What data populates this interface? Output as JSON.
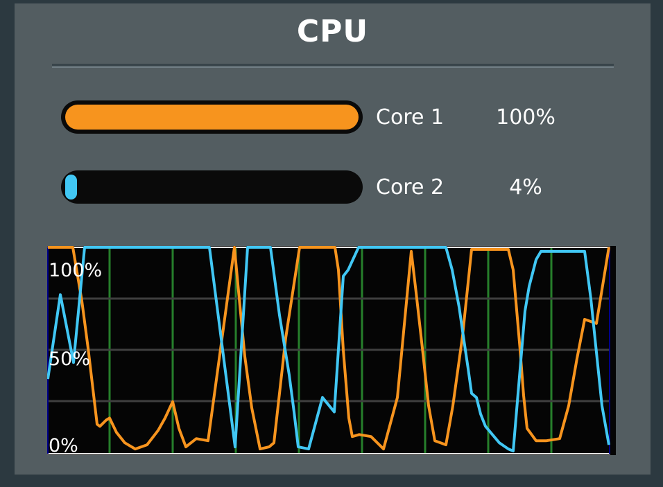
{
  "widget": {
    "title": "CPU"
  },
  "cores": [
    {
      "label": "Core 1",
      "value": "100%",
      "percent": 100,
      "fill_color": "#f7941e"
    },
    {
      "label": "Core 2",
      "value": "4%",
      "percent": 4,
      "fill_color": "#41c7f4"
    }
  ],
  "colors": {
    "background": "#2c3940",
    "panel": "#535d61",
    "bar_background": "#0a0a0a",
    "chart_background": "#050505",
    "grid_vertical_green": "#267f2b",
    "grid_horizontal_gray": "#3f3f3f",
    "chart_border_light": "#e9e9e9",
    "chart_border_navy": "#00008b",
    "text": "#ffffff",
    "core1_orange": "#f7941e",
    "core2_cyan": "#41c7f4"
  },
  "chart_data": {
    "type": "line",
    "ylim": [
      0,
      100
    ],
    "x_range_svg": [
      0,
      810
    ],
    "yticks": [
      {
        "label": "100%",
        "value": 100
      },
      {
        "label": "50%",
        "value": 50
      },
      {
        "label": "0%",
        "value": 0
      }
    ],
    "grid": {
      "horizontal_percent": [
        25,
        50,
        75
      ],
      "vertical_x_svg": [
        90,
        181,
        272,
        363,
        454,
        545,
        636,
        727
      ]
    },
    "legend_position": "none",
    "series": [
      {
        "name": "Core 1",
        "color": "#f7941e",
        "points": [
          [
            1,
            100
          ],
          [
            37,
            100
          ],
          [
            50,
            74
          ],
          [
            59,
            51
          ],
          [
            72,
            14
          ],
          [
            76,
            13
          ],
          [
            85,
            16
          ],
          [
            90,
            17
          ],
          [
            100,
            10
          ],
          [
            112,
            5
          ],
          [
            127,
            2
          ],
          [
            144,
            4
          ],
          [
            160,
            11
          ],
          [
            170,
            17
          ],
          [
            181,
            25
          ],
          [
            190,
            12
          ],
          [
            200,
            3
          ],
          [
            215,
            7
          ],
          [
            232,
            6
          ],
          [
            270,
            100
          ],
          [
            277,
            75
          ],
          [
            285,
            47
          ],
          [
            295,
            22
          ],
          [
            307,
            2
          ],
          [
            320,
            3
          ],
          [
            327,
            5
          ],
          [
            344,
            56
          ],
          [
            364,
            100
          ],
          [
            415,
            100
          ],
          [
            420,
            89
          ],
          [
            427,
            50
          ],
          [
            435,
            17
          ],
          [
            440,
            8
          ],
          [
            450,
            9
          ],
          [
            467,
            8
          ],
          [
            485,
            2
          ],
          [
            505,
            27
          ],
          [
            525,
            98
          ],
          [
            532,
            78
          ],
          [
            542,
            48
          ],
          [
            550,
            23
          ],
          [
            559,
            6
          ],
          [
            575,
            4
          ],
          [
            585,
            23
          ],
          [
            599,
            57
          ],
          [
            612,
            99
          ],
          [
            665,
            99
          ],
          [
            672,
            89
          ],
          [
            682,
            50
          ],
          [
            687,
            28
          ],
          [
            692,
            12
          ],
          [
            705,
            6
          ],
          [
            720,
            6
          ],
          [
            739,
            7
          ],
          [
            752,
            23
          ],
          [
            764,
            46
          ],
          [
            775,
            65
          ],
          [
            792,
            63
          ],
          [
            810,
            100
          ]
        ]
      },
      {
        "name": "Core 2",
        "color": "#41c7f4",
        "points": [
          [
            1,
            36
          ],
          [
            19,
            77
          ],
          [
            38,
            44
          ],
          [
            54,
            100
          ],
          [
            234,
            100
          ],
          [
            271,
            3
          ],
          [
            289,
            100
          ],
          [
            322,
            100
          ],
          [
            335,
            67
          ],
          [
            349,
            38
          ],
          [
            356,
            20
          ],
          [
            362,
            3
          ],
          [
            377,
            2
          ],
          [
            397,
            27
          ],
          [
            414,
            20
          ],
          [
            427,
            86
          ],
          [
            434,
            89
          ],
          [
            449,
            100
          ],
          [
            575,
            100
          ],
          [
            584,
            89
          ],
          [
            594,
            71
          ],
          [
            600,
            57
          ],
          [
            607,
            41
          ],
          [
            612,
            29
          ],
          [
            619,
            27
          ],
          [
            625,
            19
          ],
          [
            632,
            13
          ],
          [
            642,
            9
          ],
          [
            652,
            5
          ],
          [
            665,
            2
          ],
          [
            672,
            1
          ],
          [
            682,
            41
          ],
          [
            689,
            69
          ],
          [
            695,
            81
          ],
          [
            705,
            94
          ],
          [
            712,
            98
          ],
          [
            775,
            98
          ],
          [
            784,
            75
          ],
          [
            792,
            49
          ],
          [
            800,
            23
          ],
          [
            810,
            4
          ]
        ]
      }
    ]
  }
}
